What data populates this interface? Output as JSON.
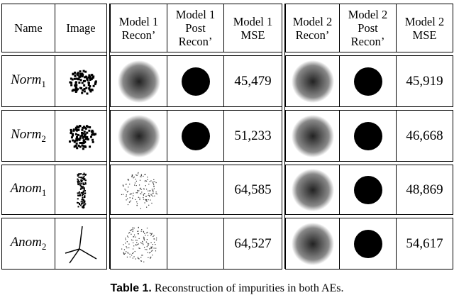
{
  "table": {
    "header": [
      [
        "Name"
      ],
      [
        "Image"
      ],
      [
        "Model 1",
        "Recon’"
      ],
      [
        "Model 1",
        "Post",
        "Recon’"
      ],
      [
        "Model 1",
        "MSE"
      ],
      [
        "Model 2",
        "Recon’"
      ],
      [
        "Model 2",
        "Post",
        "Recon’"
      ],
      [
        "Model 2",
        "MSE"
      ]
    ],
    "rows": [
      {
        "name": {
          "base": "Norm",
          "sub": "1"
        },
        "model1_mse": "45,479",
        "model2_mse": "45,919"
      },
      {
        "name": {
          "base": "Norm",
          "sub": "2"
        },
        "model1_mse": "51,233",
        "model2_mse": "46,668"
      },
      {
        "name": {
          "base": "Anom",
          "sub": "1"
        },
        "model1_mse": "64,585",
        "model2_mse": "48,869"
      },
      {
        "name": {
          "base": "Anom",
          "sub": "2"
        },
        "model1_mse": "64,527",
        "model2_mse": "54,617"
      }
    ]
  },
  "caption": {
    "label": "Table 1.",
    "text": "Reconstruction of impurities in both AEs."
  }
}
